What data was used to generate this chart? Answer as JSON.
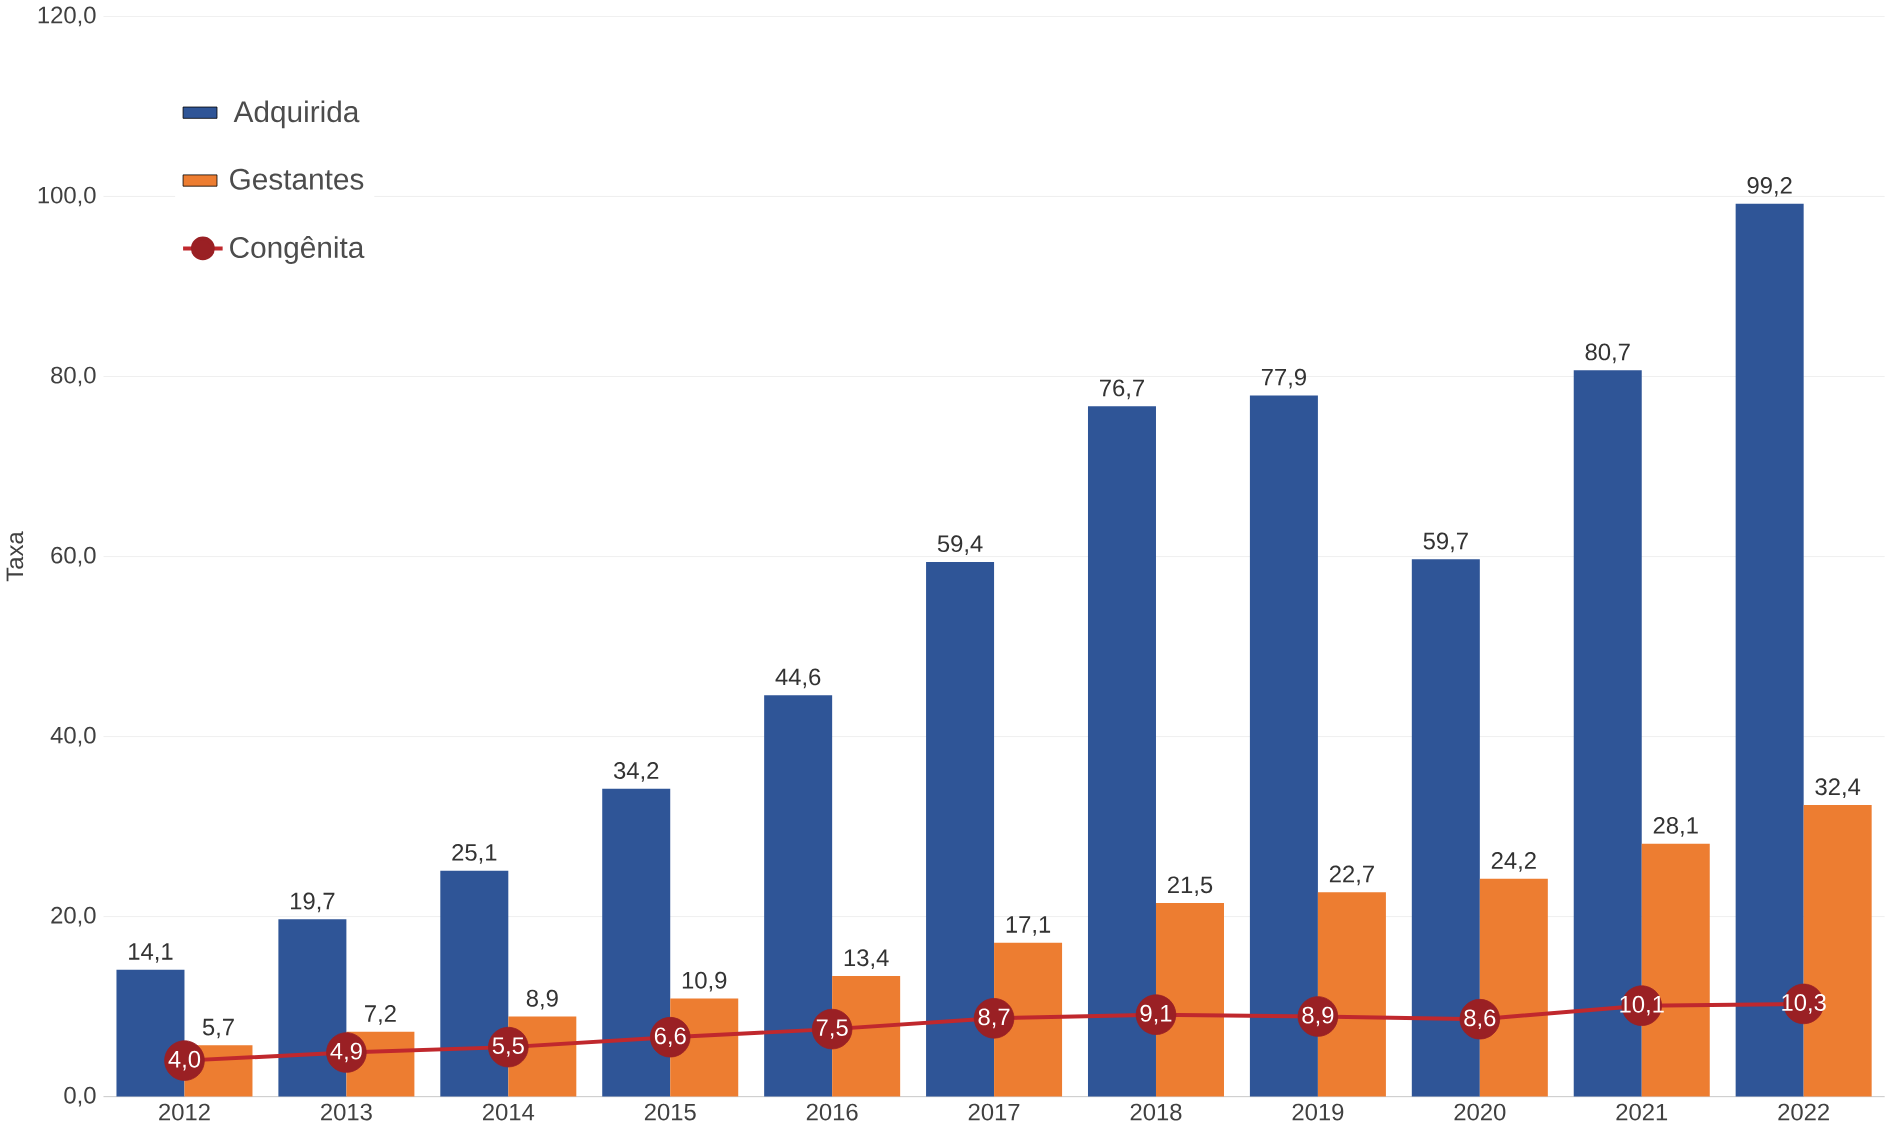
{
  "chart_data": {
    "type": "bar",
    "ylabel": "Taxa",
    "categories": [
      "2012",
      "2013",
      "2014",
      "2015",
      "2016",
      "2017",
      "2018",
      "2019",
      "2020",
      "2021",
      "2022"
    ],
    "series": [
      {
        "name": "Adquirida",
        "color": "#2f5597",
        "values": [
          14.1,
          19.7,
          25.1,
          34.2,
          44.6,
          59.4,
          76.7,
          77.9,
          59.7,
          80.7,
          99.2
        ],
        "value_labels": [
          "14,1",
          "19,7",
          "25,1",
          "34,2",
          "44,6",
          "59,4",
          "76,7",
          "77,9",
          "59,7",
          "80,7",
          "99,2"
        ]
      },
      {
        "name": "Gestantes",
        "color": "#ed7d31",
        "values": [
          5.7,
          7.2,
          8.9,
          10.9,
          13.4,
          17.1,
          21.5,
          22.7,
          24.2,
          28.1,
          32.4
        ],
        "value_labels": [
          "5,7",
          "7,2",
          "8,9",
          "10,9",
          "13,4",
          "17,1",
          "21,5",
          "22,7",
          "24,2",
          "28,1",
          "32,4"
        ]
      },
      {
        "name": "Congênita",
        "type": "line",
        "color": "#c0282d",
        "marker": "circle",
        "values": [
          4.0,
          4.9,
          5.5,
          6.6,
          7.5,
          8.7,
          9.1,
          8.9,
          8.6,
          10.1,
          10.3
        ],
        "value_labels": [
          "4,0",
          "4,9",
          "5,5",
          "6,6",
          "7,5",
          "8,7",
          "9,1",
          "8,9",
          "8,6",
          "10,1",
          "10,3"
        ]
      }
    ],
    "ylim": [
      0,
      120
    ],
    "yticks": [
      {
        "value": 0,
        "label": "0,0"
      },
      {
        "value": 20,
        "label": "20,0"
      },
      {
        "value": 40,
        "label": "40,0"
      },
      {
        "value": 60,
        "label": "60,0"
      },
      {
        "value": 80,
        "label": "80,0"
      },
      {
        "value": 100,
        "label": "100,0"
      },
      {
        "value": 120,
        "label": "120,0"
      }
    ],
    "grid": "y",
    "legend": "top left"
  }
}
